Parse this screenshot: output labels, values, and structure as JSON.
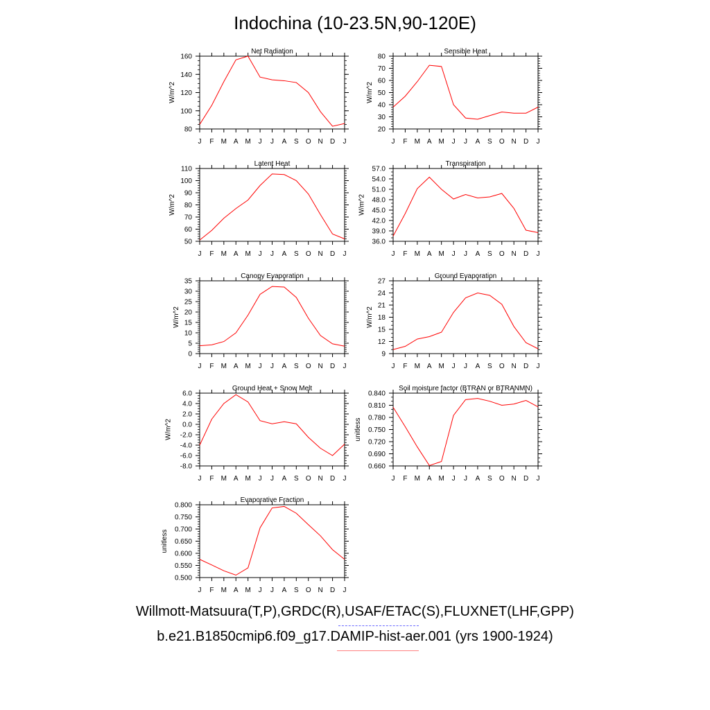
{
  "title": "Indochina (10-23.5N,90-120E)",
  "months": [
    "J",
    "F",
    "M",
    "A",
    "M",
    "J",
    "J",
    "A",
    "S",
    "O",
    "N",
    "D",
    "J"
  ],
  "colors": {
    "model": "#ff0000",
    "obs": "#0000ff",
    "frame": "#000000"
  },
  "chart_data": [
    {
      "type": "line",
      "title": "Net Radiation",
      "ylabel": "W/m^2",
      "ylim": [
        80,
        160
      ],
      "yticks": [
        "80",
        "100",
        "120",
        "140",
        "160"
      ],
      "minor_step": 5,
      "series": [
        {
          "values": [
            85,
            106,
            132,
            156,
            160,
            137,
            134,
            133,
            131,
            120,
            99,
            83,
            86
          ]
        }
      ]
    },
    {
      "type": "line",
      "title": "Sensible Heat",
      "ylabel": "W/m^2",
      "ylim": [
        20,
        80
      ],
      "yticks": [
        "20",
        "30",
        "40",
        "50",
        "60",
        "70",
        "80"
      ],
      "minor_step": 2,
      "series": [
        {
          "values": [
            38,
            47,
            59,
            72.5,
            71.5,
            40,
            29,
            28,
            31,
            34,
            33,
            33,
            38
          ]
        }
      ]
    },
    {
      "type": "line",
      "title": "Latent Heat",
      "ylabel": "W/m^2",
      "ylim": [
        50,
        110
      ],
      "yticks": [
        "50",
        "60",
        "70",
        "80",
        "90",
        "100",
        "110"
      ],
      "minor_step": 2,
      "series": [
        {
          "values": [
            51,
            59,
            69,
            77,
            84,
            96,
            105.5,
            105,
            100,
            89,
            72,
            56,
            52
          ]
        }
      ]
    },
    {
      "type": "line",
      "title": "Transpiration",
      "ylabel": "W/m^2",
      "ylim": [
        36,
        57
      ],
      "yticks": [
        "36.0",
        "39.0",
        "42.0",
        "45.0",
        "48.0",
        "51.0",
        "54.0",
        "57.0"
      ],
      "minor_step": 1,
      "series": [
        {
          "values": [
            37.5,
            44,
            51.2,
            54.5,
            51,
            48.2,
            49.5,
            48.5,
            48.8,
            49.8,
            45.5,
            39.2,
            38.5
          ]
        }
      ]
    },
    {
      "type": "line",
      "title": "Canopy Evaporation",
      "ylabel": "W/m^2",
      "ylim": [
        0,
        35
      ],
      "yticks": [
        "0",
        "5",
        "10",
        "15",
        "20",
        "25",
        "30",
        "35"
      ],
      "minor_step": 1,
      "series": [
        {
          "values": [
            3.8,
            4.2,
            5.8,
            10,
            18.5,
            28.5,
            32.3,
            32,
            27,
            17,
            8.7,
            4.7,
            3.6
          ]
        }
      ]
    },
    {
      "type": "line",
      "title": "Ground Evaporation",
      "ylabel": "W/m^2",
      "ylim": [
        9,
        27
      ],
      "yticks": [
        "9",
        "12",
        "15",
        "18",
        "21",
        "24",
        "27"
      ],
      "minor_step": 1,
      "series": [
        {
          "values": [
            10,
            10.8,
            12.6,
            13.2,
            14.3,
            19.2,
            22.8,
            24,
            23.4,
            21.2,
            15.7,
            11.7,
            10.2
          ]
        }
      ]
    },
    {
      "type": "line",
      "title": "Ground Heat + Snow Melt",
      "ylabel": "W/m^2",
      "ylim": [
        -8,
        6
      ],
      "yticks": [
        "-8.0",
        "-6.0",
        "-4.0",
        "-2.0",
        "0.0",
        "2.0",
        "4.0",
        "6.0"
      ],
      "minor_step": 0.5,
      "series": [
        {
          "values": [
            -4,
            1,
            4,
            5.7,
            4.3,
            0.7,
            0.1,
            0.5,
            0.1,
            -2.5,
            -4.6,
            -6,
            -3.8
          ]
        }
      ]
    },
    {
      "type": "line",
      "title": "Soil moisture factor (BTRAN or BTRANMN)",
      "ylabel": "unitless",
      "ylim": [
        0.66,
        0.84
      ],
      "yticks": [
        "0.660",
        "0.690",
        "0.720",
        "0.750",
        "0.780",
        "0.810",
        "0.840"
      ],
      "minor_step": 0.01,
      "series": [
        {
          "values": [
            0.805,
            0.757,
            0.707,
            0.661,
            0.671,
            0.785,
            0.824,
            0.827,
            0.82,
            0.81,
            0.813,
            0.822,
            0.806
          ]
        }
      ]
    },
    {
      "type": "line",
      "title": "Evaporative Fraction",
      "ylabel": "unitless",
      "ylim": [
        0.5,
        0.8
      ],
      "yticks": [
        "0.500",
        "0.550",
        "0.600",
        "0.650",
        "0.700",
        "0.750",
        "0.800"
      ],
      "minor_step": 0.01,
      "series": [
        {
          "values": [
            0.575,
            0.552,
            0.528,
            0.51,
            0.54,
            0.705,
            0.787,
            0.793,
            0.765,
            0.718,
            0.672,
            0.615,
            0.575
          ]
        }
      ]
    }
  ],
  "footer": {
    "obs_label": "Willmott-Matsuura(T,P),GRDC(R),USAF/ETAC(S),FLUXNET(LHF,GPP)",
    "model_label": "b.e21.B1850cmip6.f09_g17.DAMIP-hist-aer.001 (yrs 1900-1924)"
  }
}
